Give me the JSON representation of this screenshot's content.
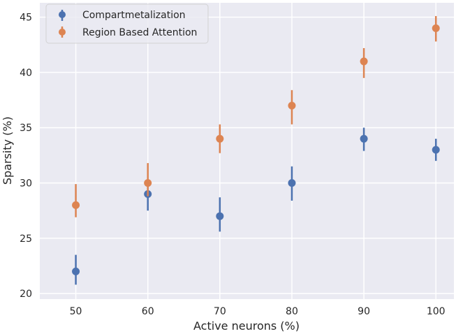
{
  "chart_data": {
    "type": "scatter",
    "title": "",
    "xlabel": "Active neurons (%)",
    "ylabel": "Sparsity (%)",
    "x": [
      50,
      60,
      70,
      80,
      90,
      100
    ],
    "x_tick_labels": [
      "50",
      "60",
      "70",
      "80",
      "90",
      "100"
    ],
    "y_ticks": [
      20,
      25,
      30,
      35,
      40,
      45
    ],
    "y_tick_labels": [
      "20",
      "25",
      "30",
      "35",
      "40",
      "45"
    ],
    "xlim": [
      45,
      102.5
    ],
    "ylim": [
      19.5,
      46.3
    ],
    "grid": true,
    "legend_position": "top-left",
    "background_color": "#eaeaf2",
    "series": [
      {
        "name": "Compartmetalization",
        "color": "#4c72b0",
        "values": [
          22,
          29,
          27,
          30,
          34,
          33
        ],
        "error_low": [
          20.8,
          27.5,
          25.6,
          28.4,
          32.9,
          32.0
        ],
        "error_high": [
          23.5,
          30.1,
          28.7,
          31.5,
          35.0,
          34.0
        ]
      },
      {
        "name": "Region Based Attention",
        "color": "#dd8452",
        "values": [
          28,
          30,
          34,
          37,
          41,
          44
        ],
        "error_low": [
          26.9,
          28.8,
          32.7,
          35.3,
          39.5,
          42.8
        ],
        "error_high": [
          29.9,
          31.8,
          35.3,
          38.4,
          42.2,
          45.1
        ]
      }
    ]
  }
}
